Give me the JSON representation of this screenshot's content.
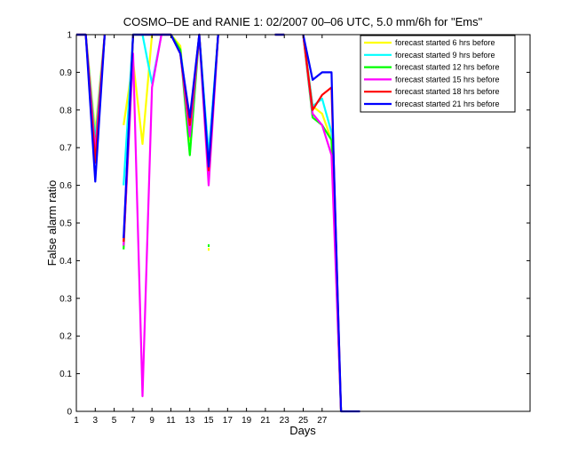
{
  "chart_data": {
    "type": "line",
    "title": "COSMO–DE and RANIE 1: 02/2007 00–06 UTC, 5.0 mm/6h for \"Ems\"",
    "xlabel": "Days",
    "ylabel": "False alarm ratio",
    "xlim": [
      1,
      49
    ],
    "ylim": [
      0,
      1
    ],
    "xticks": [
      1,
      3,
      5,
      7,
      9,
      11,
      13,
      15,
      17,
      19,
      21,
      23,
      25,
      27
    ],
    "yticks": [
      0,
      0.1,
      0.2,
      0.3,
      0.4,
      0.5,
      0.6,
      0.7,
      0.8,
      0.9,
      1
    ],
    "ytick_labels": [
      "0",
      "0.1",
      "0.2",
      "0.3",
      "0.4",
      "0.5",
      "0.6",
      "0.7",
      "0.8",
      "0.9",
      "1"
    ],
    "grid": false,
    "legend_position": "top-right",
    "series": [
      {
        "name": "forecast started 6 hrs before",
        "color": "#ffff00",
        "segments": [
          [
            [
              1,
              1
            ],
            [
              2,
              1
            ],
            [
              3,
              0.74
            ],
            [
              4,
              1
            ]
          ],
          [
            [
              6,
              0.76
            ],
            [
              7,
              0.93
            ],
            [
              8,
              0.71
            ],
            [
              9,
              1
            ],
            [
              10,
              1
            ],
            [
              11,
              1
            ],
            [
              12,
              0.97
            ],
            [
              13,
              0.72
            ],
            [
              14,
              1
            ],
            [
              15,
              0.66
            ],
            [
              16,
              1
            ]
          ],
          [
            [
              22,
              1
            ],
            [
              23,
              1
            ]
          ],
          [
            [
              25,
              1
            ],
            [
              26,
              0.81
            ],
            [
              27,
              0.79
            ],
            [
              28,
              0.72
            ],
            [
              29,
              0
            ]
          ]
        ]
      },
      {
        "name": "forecast started 9 hrs before",
        "color": "#00ffff",
        "segments": [
          [
            [
              1,
              1
            ],
            [
              2,
              1
            ],
            [
              3,
              0.72
            ],
            [
              4,
              1
            ]
          ],
          [
            [
              6,
              0.6
            ],
            [
              7,
              1
            ],
            [
              8,
              1
            ],
            [
              9,
              0.87
            ],
            [
              10,
              1
            ],
            [
              11,
              1
            ],
            [
              12,
              0.96
            ],
            [
              13,
              0.76
            ],
            [
              14,
              1
            ],
            [
              15,
              0.68
            ],
            [
              16,
              1
            ]
          ],
          [
            [
              22,
              1
            ],
            [
              23,
              1
            ]
          ],
          [
            [
              25,
              1
            ],
            [
              26,
              0.81
            ],
            [
              27,
              0.83
            ],
            [
              28,
              0.74
            ],
            [
              29,
              0
            ]
          ]
        ]
      },
      {
        "name": "forecast started 12 hrs before",
        "color": "#00ff00",
        "segments": [
          [
            [
              1,
              1
            ],
            [
              2,
              1
            ],
            [
              3,
              0.7
            ],
            [
              4,
              1
            ]
          ],
          [
            [
              6,
              0.43
            ],
            [
              7,
              1
            ],
            [
              8,
              1
            ],
            [
              9,
              1
            ],
            [
              10,
              1
            ],
            [
              11,
              1
            ],
            [
              12,
              0.96
            ],
            [
              13,
              0.68
            ],
            [
              14,
              1
            ],
            [
              15,
              0.63
            ],
            [
              16,
              1
            ]
          ],
          [
            [
              22,
              1
            ],
            [
              23,
              1
            ]
          ],
          [
            [
              25,
              1
            ],
            [
              26,
              0.78
            ],
            [
              27,
              0.76
            ],
            [
              28,
              0.72
            ],
            [
              29,
              0
            ]
          ]
        ]
      },
      {
        "name": "forecast started 15 hrs before",
        "color": "#ff00ff",
        "segments": [
          [
            [
              1,
              1
            ],
            [
              2,
              1
            ],
            [
              3,
              0.69
            ],
            [
              4,
              1
            ]
          ],
          [
            [
              6,
              0.44
            ],
            [
              7,
              0.95
            ],
            [
              8,
              0.04
            ],
            [
              9,
              0.86
            ],
            [
              10,
              1
            ],
            [
              11,
              1
            ],
            [
              12,
              0.95
            ],
            [
              13,
              0.73
            ],
            [
              14,
              1
            ],
            [
              15,
              0.6
            ],
            [
              16,
              1
            ]
          ],
          [
            [
              22,
              1
            ],
            [
              23,
              1
            ]
          ],
          [
            [
              25,
              1
            ],
            [
              26,
              0.79
            ],
            [
              27,
              0.76
            ],
            [
              28,
              0.68
            ],
            [
              29,
              0
            ]
          ]
        ]
      },
      {
        "name": "forecast started 18 hrs before",
        "color": "#ff0000",
        "segments": [
          [
            [
              1,
              1
            ],
            [
              2,
              1
            ],
            [
              3,
              0.66
            ],
            [
              4,
              1
            ]
          ],
          [
            [
              6,
              0.45
            ],
            [
              7,
              1
            ],
            [
              8,
              1
            ],
            [
              9,
              1
            ],
            [
              10,
              1
            ],
            [
              11,
              1
            ],
            [
              12,
              0.95
            ],
            [
              13,
              0.76
            ],
            [
              14,
              1
            ],
            [
              15,
              0.64
            ],
            [
              16,
              1
            ]
          ],
          [
            [
              22,
              1
            ],
            [
              23,
              1
            ]
          ],
          [
            [
              25,
              1
            ],
            [
              26,
              0.8
            ],
            [
              27,
              0.84
            ],
            [
              28,
              0.86
            ],
            [
              28.2,
              0.68
            ],
            [
              29,
              0
            ]
          ]
        ]
      },
      {
        "name": "forecast started 21 hrs before",
        "color": "#0000ff",
        "segments": [
          [
            [
              1,
              1
            ],
            [
              2,
              1
            ],
            [
              3,
              0.61
            ],
            [
              4,
              1
            ]
          ],
          [
            [
              6,
              0.46
            ],
            [
              7,
              1
            ],
            [
              8,
              1
            ],
            [
              9,
              1
            ],
            [
              10,
              1
            ],
            [
              11,
              1
            ],
            [
              12,
              0.95
            ],
            [
              13,
              0.78
            ],
            [
              14,
              1
            ],
            [
              15,
              0.65
            ],
            [
              16,
              1
            ]
          ],
          [
            [
              22,
              1
            ],
            [
              23,
              1
            ]
          ],
          [
            [
              25,
              1
            ],
            [
              26,
              0.88
            ],
            [
              27,
              0.9
            ],
            [
              28,
              0.9
            ],
            [
              28.2,
              0.69
            ],
            [
              29,
              0
            ],
            [
              31,
              0
            ]
          ]
        ]
      }
    ],
    "stray_points": [
      {
        "color": "#00ff00",
        "x": 15,
        "y": 0.44
      },
      {
        "color": "#ffff00",
        "x": 15,
        "y": 0.43
      }
    ]
  }
}
